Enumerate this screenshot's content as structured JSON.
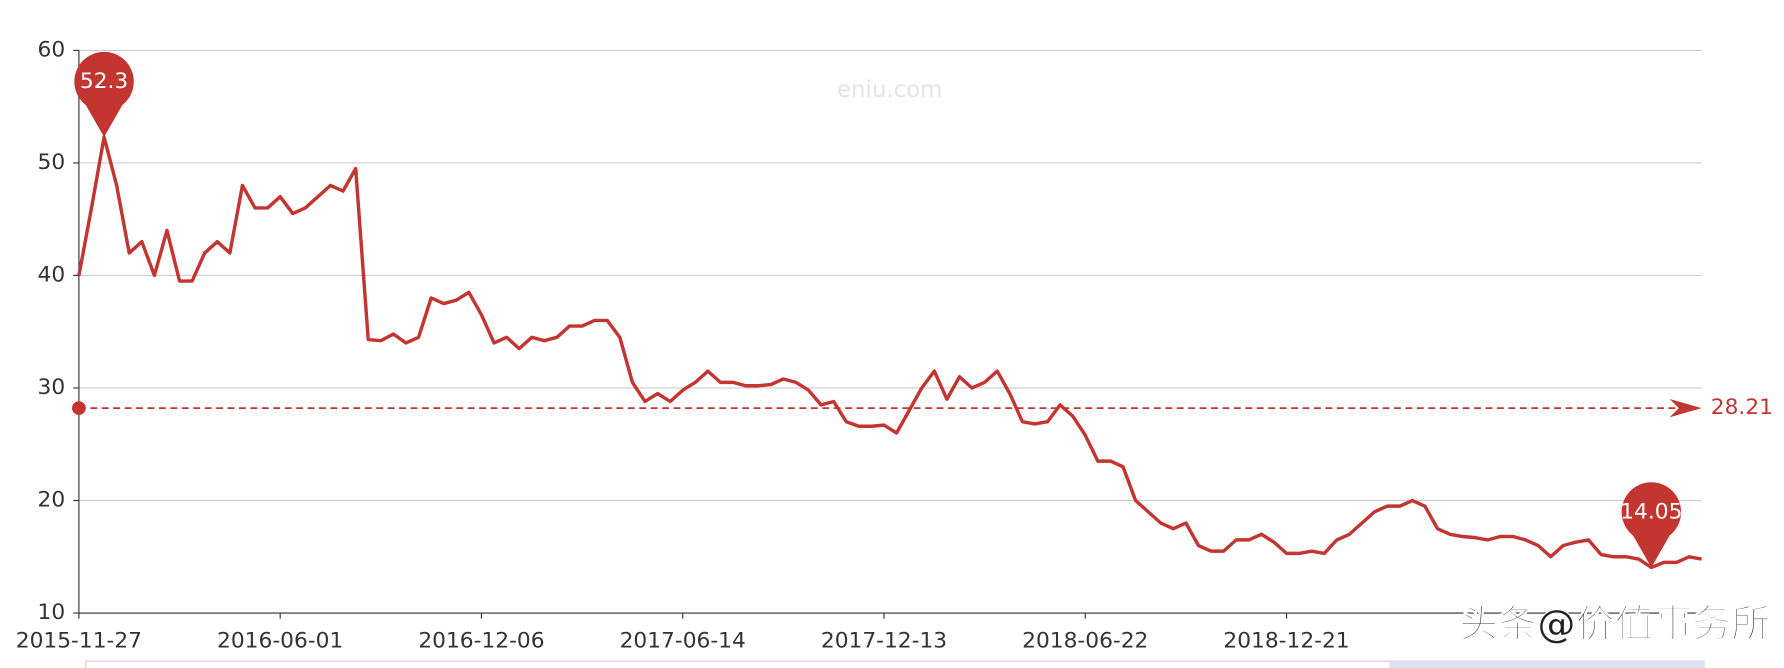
{
  "chart_data": {
    "type": "line",
    "watermark": "eniu.com",
    "overlay_text": "头条@价值事务所",
    "categories": [
      "2015-11-27",
      null,
      null,
      null,
      null,
      null,
      null,
      null,
      null,
      null,
      null,
      null,
      null,
      null,
      null,
      null,
      "2016-06-01",
      null,
      null,
      null,
      null,
      null,
      null,
      null,
      null,
      null,
      null,
      null,
      null,
      null,
      null,
      null,
      "2016-12-06",
      null,
      null,
      null,
      null,
      null,
      null,
      null,
      null,
      null,
      null,
      null,
      null,
      null,
      null,
      null,
      "2017-06-14",
      null,
      null,
      null,
      null,
      null,
      null,
      null,
      null,
      null,
      null,
      null,
      null,
      null,
      null,
      null,
      "2017-12-13",
      null,
      null,
      null,
      null,
      null,
      null,
      null,
      null,
      null,
      null,
      null,
      null,
      null,
      null,
      null,
      "2018-06-22",
      null,
      null,
      null,
      null,
      null,
      null,
      null,
      null,
      null,
      null,
      null,
      null,
      null,
      null,
      null,
      "2018-12-21",
      null,
      null,
      null,
      null,
      null,
      null,
      null,
      null,
      null,
      null,
      null,
      null,
      null,
      null,
      null,
      null,
      null,
      null,
      null,
      null,
      null,
      null,
      null,
      null,
      null,
      null,
      null,
      null,
      null,
      null,
      null,
      null,
      null
    ],
    "series": [
      {
        "color": "#c23531",
        "values": [
          40,
          46,
          52.3,
          48,
          42,
          43,
          40,
          44,
          39.5,
          39.5,
          42,
          43,
          42,
          48,
          46,
          46,
          47,
          45.5,
          46,
          47,
          48,
          47.5,
          49.5,
          34.3,
          34.2,
          34.8,
          34,
          34.5,
          38,
          37.5,
          37.8,
          38.5,
          36.5,
          34,
          34.5,
          33.5,
          34.5,
          34.2,
          34.5,
          35.5,
          35.5,
          36,
          36,
          34.5,
          30.5,
          28.8,
          29.5,
          28.8,
          29.8,
          30.5,
          31.5,
          30.5,
          30.5,
          30.2,
          30.2,
          30.3,
          30.8,
          30.5,
          29.8,
          28.5,
          28.8,
          27,
          26.6,
          26.6,
          26.7,
          26,
          28,
          30,
          31.5,
          29,
          31,
          30,
          30.5,
          31.5,
          29.5,
          27,
          26.8,
          27,
          28.5,
          27.5,
          25.8,
          23.5,
          23.5,
          23,
          20,
          19,
          18,
          17.5,
          18,
          16,
          15.5,
          15.5,
          16.5,
          16.5,
          17,
          16.3,
          15.3,
          15.3,
          15.5,
          15.3,
          16.5,
          17,
          18,
          19,
          19.5,
          19.5,
          20,
          19.5,
          17.5,
          17,
          16.8,
          16.7,
          16.5,
          16.8,
          16.8,
          16.5,
          16,
          15,
          16,
          16.3,
          16.5,
          15.2,
          15,
          15,
          14.8,
          14.05,
          14.5,
          14.5,
          15,
          14.8
        ]
      }
    ],
    "mark_points": [
      {
        "index": 2,
        "value": 52.3
      },
      {
        "index": 125,
        "value": 14.05
      }
    ],
    "mark_line": {
      "value": 28.21
    },
    "ylim": [
      10,
      60
    ],
    "yticks": [
      10,
      20,
      30,
      40,
      50,
      60
    ],
    "grid": true
  }
}
